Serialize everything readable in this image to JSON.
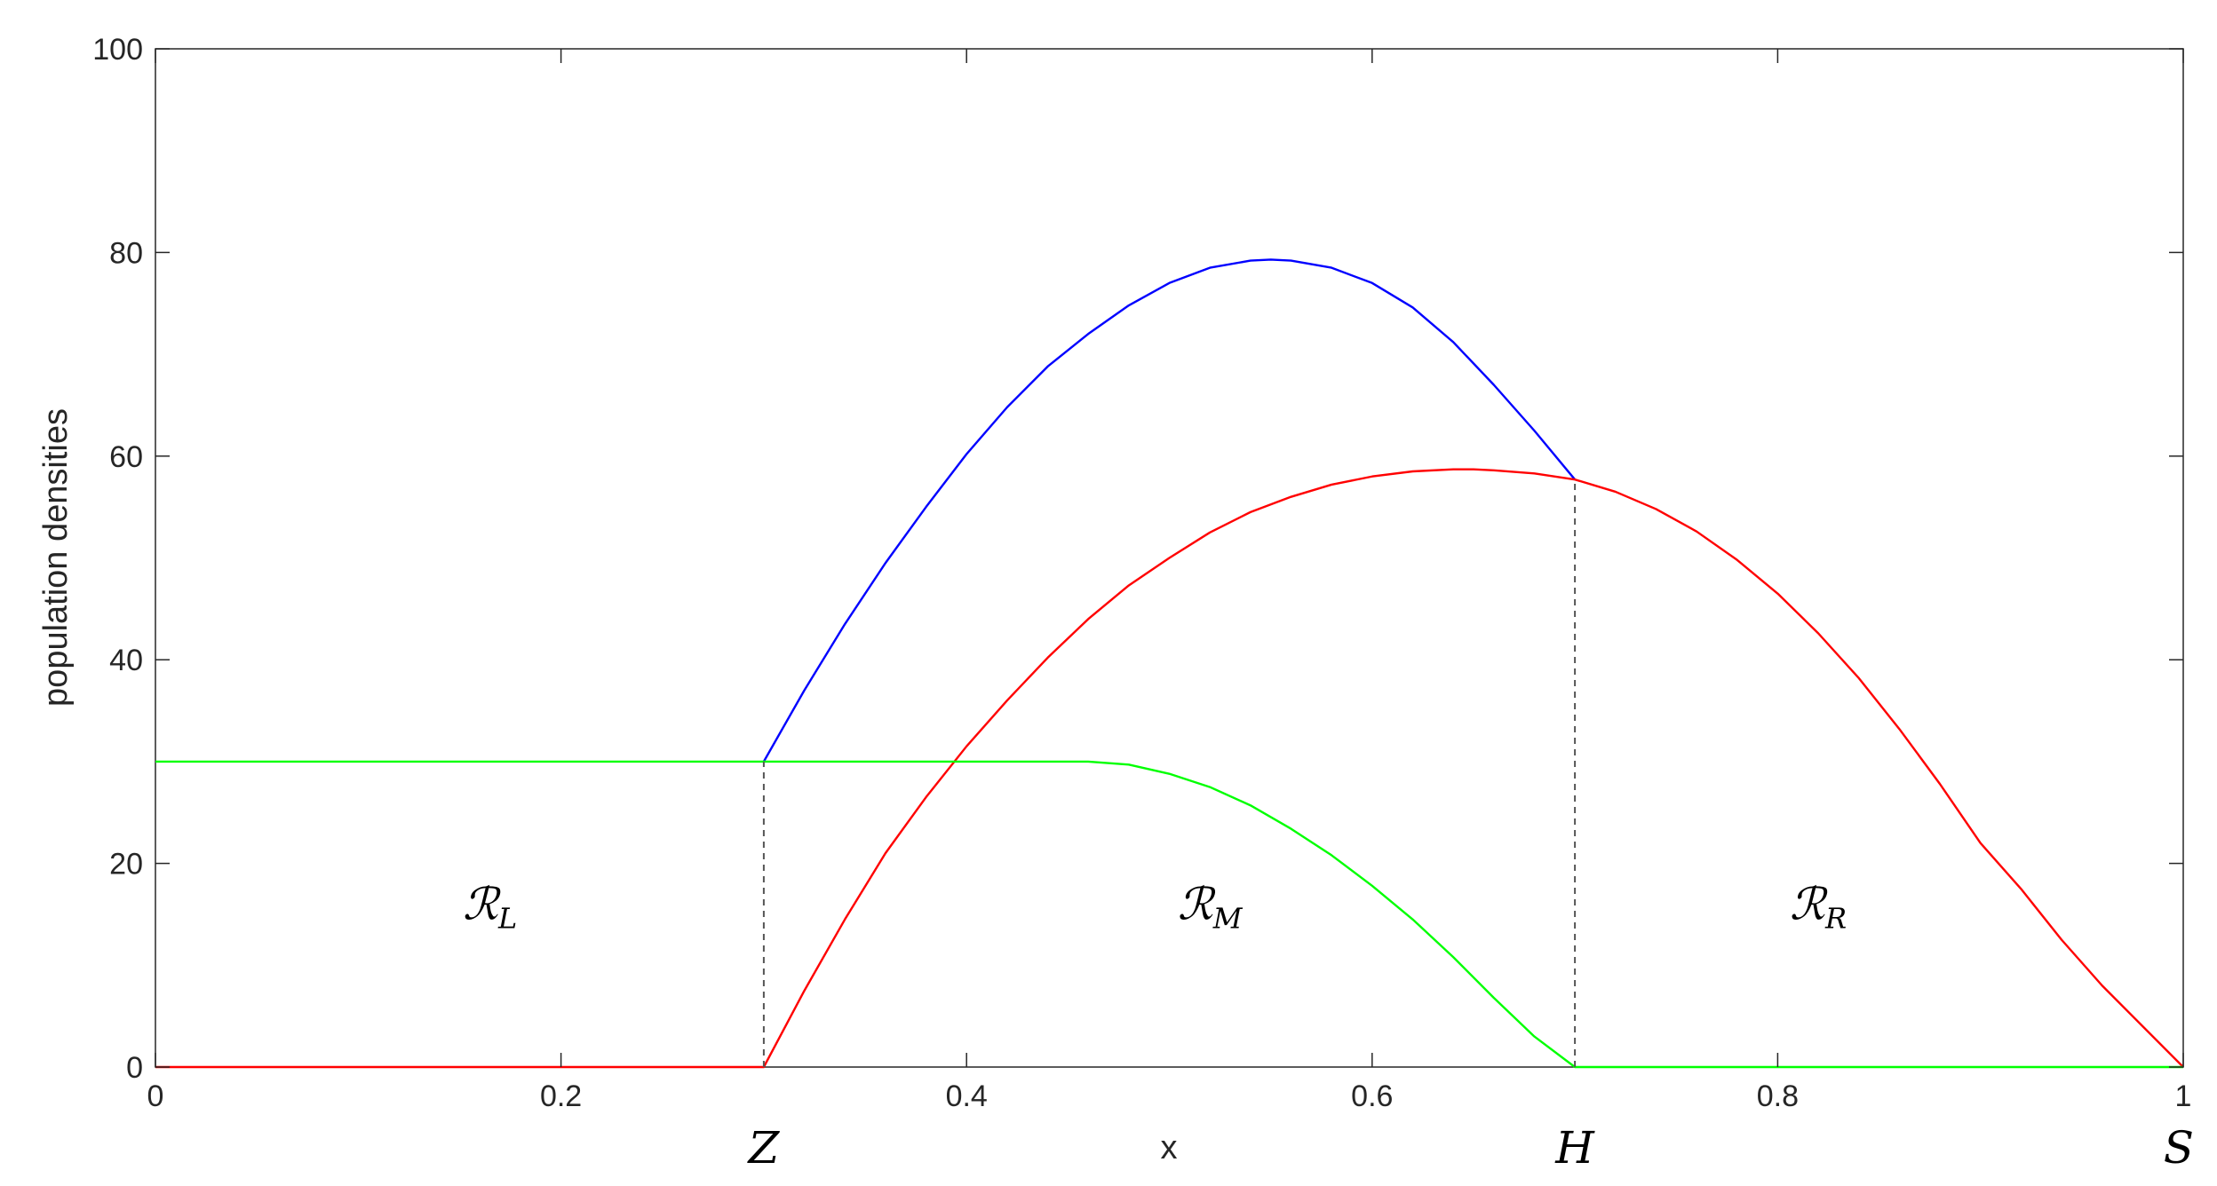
{
  "chart_data": {
    "type": "line",
    "title": "",
    "xlabel": "x",
    "ylabel": "population densities",
    "xlim": [
      0,
      1
    ],
    "ylim": [
      0,
      100
    ],
    "xticks": [
      0,
      0.2,
      0.4,
      0.6,
      0.8,
      1
    ],
    "xtick_labels": [
      "0",
      "0.2",
      "0.4",
      "0.6",
      "0.8",
      "1"
    ],
    "yticks": [
      0,
      20,
      40,
      60,
      80,
      100
    ],
    "ytick_labels": [
      "0",
      "20",
      "40",
      "60",
      "80",
      "100"
    ],
    "grid": false,
    "legend": "none",
    "series": [
      {
        "color": "#0000ff",
        "x": [
          0.3,
          0.32,
          0.34,
          0.36,
          0.38,
          0.4,
          0.42,
          0.44,
          0.46,
          0.48,
          0.5,
          0.52,
          0.54,
          0.55,
          0.56,
          0.58,
          0.6,
          0.62,
          0.64,
          0.66,
          0.68,
          0.7
        ],
        "y": [
          30.0,
          37.0,
          43.5,
          49.5,
          55.0,
          60.2,
          64.8,
          68.8,
          72.0,
          74.8,
          77.0,
          78.5,
          79.2,
          79.3,
          79.2,
          78.5,
          77.0,
          74.6,
          71.2,
          67.0,
          62.5,
          57.7
        ]
      },
      {
        "color": "#ff0000",
        "x": [
          0,
          0.3,
          0.32,
          0.34,
          0.36,
          0.38,
          0.4,
          0.42,
          0.44,
          0.46,
          0.48,
          0.5,
          0.52,
          0.54,
          0.56,
          0.58,
          0.6,
          0.62,
          0.64,
          0.65,
          0.66,
          0.68,
          0.7,
          0.72,
          0.74,
          0.76,
          0.78,
          0.8,
          0.82,
          0.84,
          0.86,
          0.88,
          0.9,
          0.92,
          0.94,
          0.96,
          0.98,
          1.0
        ],
        "y": [
          0,
          0,
          7.5,
          14.5,
          21.0,
          26.5,
          31.5,
          36.0,
          40.2,
          44.0,
          47.3,
          50.0,
          52.5,
          54.5,
          56.0,
          57.2,
          58.0,
          58.5,
          58.7,
          58.7,
          58.6,
          58.3,
          57.7,
          56.5,
          54.8,
          52.6,
          49.8,
          46.5,
          42.6,
          38.2,
          33.2,
          27.8,
          22.0,
          17.5,
          12.5,
          8.0,
          4.0,
          0.0
        ]
      },
      {
        "color": "#00ff00",
        "x": [
          0,
          0.3,
          0.46,
          0.48,
          0.5,
          0.52,
          0.54,
          0.56,
          0.58,
          0.6,
          0.62,
          0.64,
          0.66,
          0.68,
          0.7,
          1.0
        ],
        "y": [
          30,
          30,
          30,
          29.7,
          28.8,
          27.5,
          25.7,
          23.4,
          20.8,
          17.8,
          14.5,
          10.8,
          6.8,
          3.0,
          0,
          0
        ]
      }
    ],
    "vlines": [
      {
        "x": 0.3,
        "y0": 0,
        "y1": 30
      },
      {
        "x": 0.7,
        "y0": 0,
        "y1": 57.7
      }
    ],
    "annotations": {
      "markers": [
        {
          "x": 0.3,
          "label": "Z"
        },
        {
          "x": 0.7,
          "label": "H"
        },
        {
          "x": 1.0,
          "label": "S"
        }
      ],
      "regions": [
        {
          "x": 0.165,
          "y": 14.5,
          "main": "ℛ",
          "sub": "L"
        },
        {
          "x": 0.52,
          "y": 14.5,
          "main": "ℛ",
          "sub": "M"
        },
        {
          "x": 0.82,
          "y": 14.5,
          "main": "ℛ",
          "sub": "R"
        }
      ]
    }
  }
}
